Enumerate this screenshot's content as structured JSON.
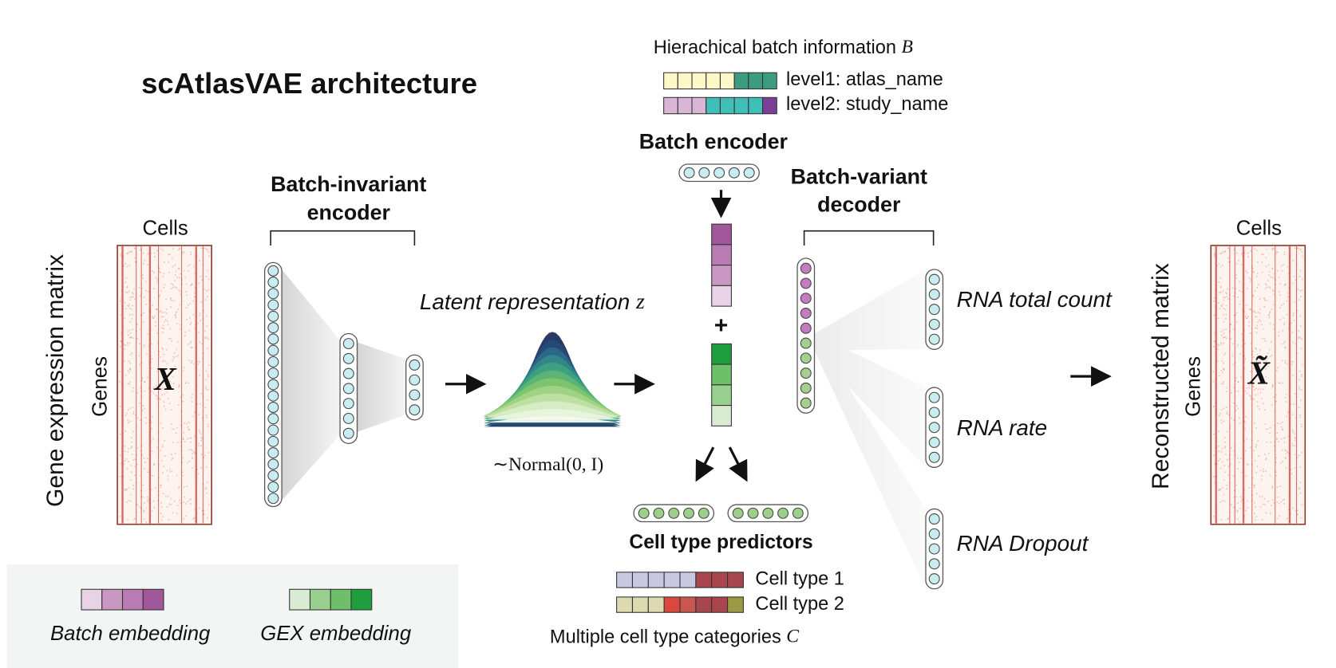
{
  "title": "scAtlasVAE architecture",
  "input": {
    "axis_top": "Cells",
    "axis_side": "Genes",
    "label": "Gene expression matrix",
    "symbol": "X"
  },
  "encoder": {
    "title_lines": [
      "Batch-invariant",
      "encoder"
    ]
  },
  "latent": {
    "label": "Latent representation",
    "symbol": "z",
    "distribution": "∼Normal(0, I)"
  },
  "batch_info": {
    "label": "Hierachical batch information",
    "symbol": "B",
    "levels": [
      "level1: atlas_name",
      "level2: study_name"
    ]
  },
  "batch_encoder": "Batch encoder",
  "decoder": {
    "title_lines": [
      "Batch-variant",
      "decoder"
    ]
  },
  "outputs": [
    "RNA total count",
    "RNA rate",
    "RNA Dropout"
  ],
  "predictors": {
    "title": "Cell type predictors",
    "levels": [
      "Cell type 1",
      "Cell type 2"
    ],
    "label": "Multiple cell type categories",
    "symbol": "C"
  },
  "output": {
    "axis_top": "Cells",
    "axis_side": "Genes",
    "label": "Reconstructed matrix",
    "symbol": "X̃"
  },
  "legend": [
    "Batch embedding",
    "GEX embedding"
  ]
}
